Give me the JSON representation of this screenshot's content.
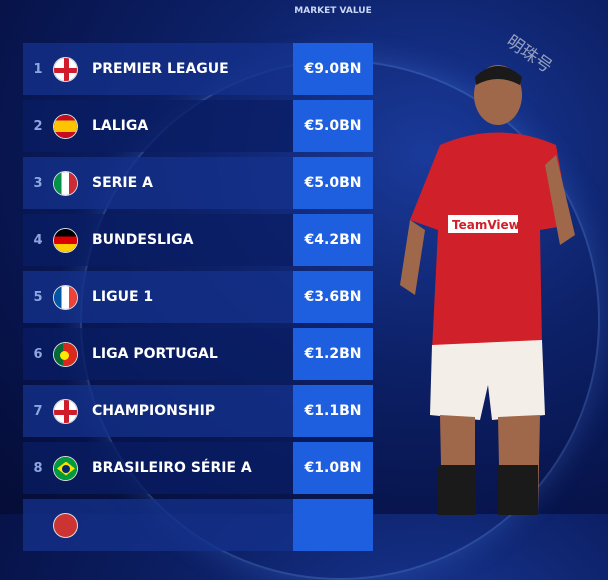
{
  "header": {
    "market_value": "MARKET VALUE"
  },
  "watermark": "明珠号",
  "rows": [
    {
      "rank": "1",
      "flag": "england-flag-icon",
      "name": "PREMIER LEAGUE",
      "value": "€9.0BN"
    },
    {
      "rank": "2",
      "flag": "spain-flag-icon",
      "name": "LALIGA",
      "value": "€5.0BN"
    },
    {
      "rank": "3",
      "flag": "italy-flag-icon",
      "name": "SERIE A",
      "value": "€5.0BN"
    },
    {
      "rank": "4",
      "flag": "germany-flag-icon",
      "name": "BUNDESLIGA",
      "value": "€4.2BN"
    },
    {
      "rank": "5",
      "flag": "france-flag-icon",
      "name": "LIGUE 1",
      "value": "€3.6BN"
    },
    {
      "rank": "6",
      "flag": "portugal-flag-icon",
      "name": "LIGA PORTUGAL",
      "value": "€1.2BN"
    },
    {
      "rank": "7",
      "flag": "england-flag-icon",
      "name": "CHAMPIONSHIP",
      "value": "€1.1BN"
    },
    {
      "rank": "8",
      "flag": "brazil-flag-icon",
      "name": "BRASILEIRO SÉRIE A",
      "value": "€1.0BN"
    }
  ],
  "player_shirt_sponsor": "TeamViewer",
  "colors": {
    "value_box": "#1e5fe0",
    "shirt": "#d0202a"
  }
}
